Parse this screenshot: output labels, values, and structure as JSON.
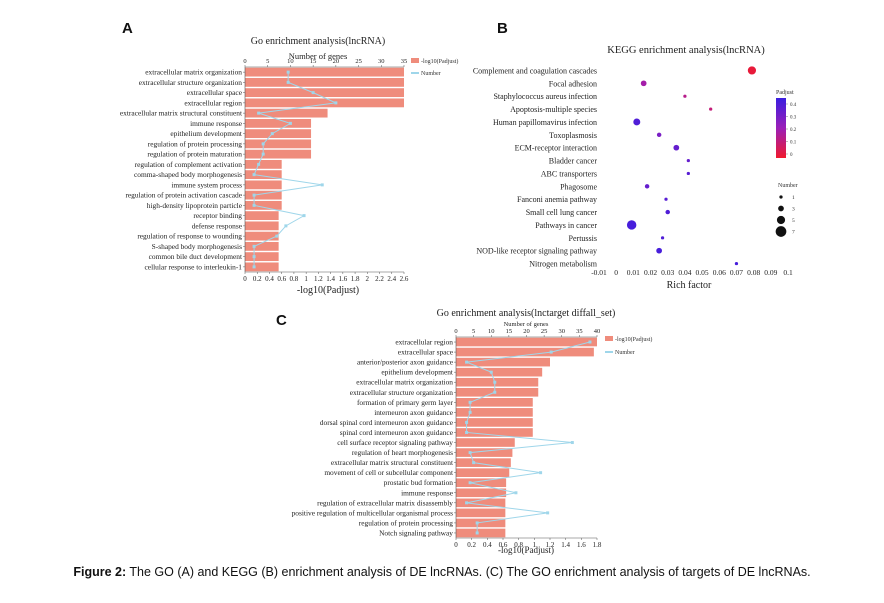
{
  "figure": {
    "caption_lead": "Figure 2:",
    "caption_text": " The GO (A) and KEGG (B) enrichment analysis of DE lncRNAs. (C) The GO enrichment analysis of targets of DE lncRNAs."
  },
  "chart_data": [
    {
      "panel": "A",
      "type": "bar",
      "title": "Go enrichment analysis(lncRNA)",
      "top_axis_label": "Number of genes",
      "xlabel": "-log10(Padjust)",
      "legend": {
        "bar": "-log10(Padjust)",
        "line": "Number"
      },
      "colors": {
        "bar": "#ef8c7c",
        "line": "#9fd6ea"
      },
      "bottom_ticks": [
        "0",
        "0.2",
        "0.4",
        "0.6",
        "0.8",
        "1",
        "1.2",
        "1.4",
        "1.6",
        "1.8",
        "2",
        "2.2",
        "2.4",
        "2.6"
      ],
      "top_ticks": [
        "0",
        "5",
        "10",
        "15",
        "20",
        "25",
        "30",
        "35"
      ],
      "xlim": [
        0,
        2.6
      ],
      "top_lim": [
        0,
        35
      ],
      "categories": [
        "extracellular matrix organization",
        "extracellular structure organization",
        "extracellular space",
        "extracellular region",
        "extracellular matrix structural constituent",
        "immune response",
        "epithelium development",
        "regulation of protein processing",
        "regulation of protein maturation",
        "regulation of complement activation",
        "comma-shaped body morphogenesis",
        "immune system process",
        "regulation of protein activation cascade",
        "high-density lipoprotein particle",
        "receptor binding",
        "defense response",
        "regulation of response to wounding",
        "S-shaped body morphogenesis",
        "common bile duct development",
        "cellular response to interleukin-1"
      ],
      "series": [
        {
          "name": "-log10(Padjust)",
          "values": [
            2.6,
            2.6,
            2.6,
            2.6,
            1.35,
            1.08,
            1.08,
            1.08,
            1.08,
            0.6,
            0.6,
            0.6,
            0.6,
            0.6,
            0.55,
            0.55,
            0.55,
            0.55,
            0.55,
            0.55
          ]
        },
        {
          "name": "Number",
          "values": [
            9.5,
            9.5,
            15,
            20,
            3,
            10,
            6,
            4,
            4,
            3,
            2,
            17,
            2,
            2,
            13,
            9,
            7,
            2,
            2,
            2
          ]
        }
      ]
    },
    {
      "panel": "B",
      "type": "scatter",
      "title": "KEGG enrichment analysis(lncRNA)",
      "xlabel": "Rich factor",
      "x_ticks": [
        "-0.01",
        "0",
        "0.01",
        "0.02",
        "0.03",
        "0.04",
        "0.05",
        "0.06",
        "0.07",
        "0.08",
        "0.09",
        "0.1"
      ],
      "xlim": [
        -0.01,
        0.1
      ],
      "legend_padjust": {
        "title": "Padjust",
        "ticks": [
          "0.4",
          "0.3",
          "0.2",
          "0.1",
          "0"
        ]
      },
      "legend_number": {
        "title": "Number",
        "labels": [
          "1",
          "3",
          "5",
          "7"
        ]
      },
      "categories": [
        "Complement and coagulation cascades",
        "Focal adhesion",
        "Staphylococcus aureus infection",
        "Apoptosis-multiple species",
        "Human papillomavirus infection",
        "Toxoplasmosis",
        "ECM-receptor interaction",
        "Bladder cancer",
        "ABC transporters",
        "Phagosome",
        "Fanconi anemia pathway",
        "Small cell lung cancer",
        "Pathways in cancer",
        "Pertussis",
        "NOD-like receptor signaling pathway",
        "Nitrogen metabolism"
      ],
      "points": [
        {
          "x": 0.079,
          "n": 5,
          "padj": 0.02
        },
        {
          "x": 0.016,
          "n": 3,
          "padj": 0.2
        },
        {
          "x": 0.04,
          "n": 1,
          "padj": 0.15
        },
        {
          "x": 0.055,
          "n": 1,
          "padj": 0.12
        },
        {
          "x": 0.012,
          "n": 4,
          "padj": 0.4
        },
        {
          "x": 0.025,
          "n": 2,
          "padj": 0.3
        },
        {
          "x": 0.035,
          "n": 3,
          "padj": 0.35
        },
        {
          "x": 0.042,
          "n": 1,
          "padj": 0.35
        },
        {
          "x": 0.042,
          "n": 1,
          "padj": 0.38
        },
        {
          "x": 0.018,
          "n": 2,
          "padj": 0.35
        },
        {
          "x": 0.029,
          "n": 1,
          "padj": 0.38
        },
        {
          "x": 0.03,
          "n": 2,
          "padj": 0.4
        },
        {
          "x": 0.009,
          "n": 6,
          "padj": 0.42
        },
        {
          "x": 0.027,
          "n": 1,
          "padj": 0.4
        },
        {
          "x": 0.025,
          "n": 3,
          "padj": 0.42
        },
        {
          "x": 0.07,
          "n": 1,
          "padj": 0.42
        }
      ]
    },
    {
      "panel": "C",
      "type": "bar",
      "title": "Go enrichment analysis(lnctarget diffall_set)",
      "top_axis_label": "Number of genes",
      "xlabel": "-log10(Padjust)",
      "legend": {
        "bar": "-log10(Padjust)",
        "line": "Number"
      },
      "colors": {
        "bar": "#ef8c7c",
        "line": "#9fd6ea"
      },
      "bottom_ticks": [
        "0",
        "0.2",
        "0.4",
        "0.6",
        "0.8",
        "1",
        "1.2",
        "1.4",
        "1.6",
        "1.8"
      ],
      "top_ticks": [
        "0",
        "5",
        "10",
        "15",
        "20",
        "25",
        "30",
        "35",
        "40"
      ],
      "xlim": [
        0,
        1.8
      ],
      "top_lim": [
        0,
        40
      ],
      "categories": [
        "extracellular region",
        "extracellular space",
        "anterior/posterior axon guidance",
        "epithelium development",
        "extracellular matrix organization",
        "extracellular structure organization",
        "formation of primary germ layer",
        "interneuron axon guidance",
        "dorsal spinal cord interneuron axon guidance",
        "spinal cord interneuron axon guidance",
        "cell surface receptor signaling pathway",
        "regulation of heart morphogenesis",
        "extracellular matrix structural constituent",
        "movement of cell or subcellular component",
        "prostatic bud formation",
        "immune response",
        "regulation of extracellular matrix disassembly",
        "positive regulation of multicellular organismal process",
        "regulation of protein processing",
        "Notch signaling pathway"
      ],
      "series": [
        {
          "name": "-log10(Padjust)",
          "values": [
            1.8,
            1.76,
            1.2,
            1.1,
            1.05,
            1.05,
            0.98,
            0.98,
            0.98,
            0.98,
            0.75,
            0.72,
            0.7,
            0.68,
            0.64,
            0.64,
            0.63,
            0.63,
            0.63,
            0.63
          ]
        },
        {
          "name": "Number",
          "values": [
            38,
            27,
            3,
            10,
            11,
            11,
            4,
            4,
            3,
            3,
            33,
            4,
            5,
            24,
            4,
            17,
            3,
            26,
            6,
            6
          ]
        }
      ]
    }
  ]
}
